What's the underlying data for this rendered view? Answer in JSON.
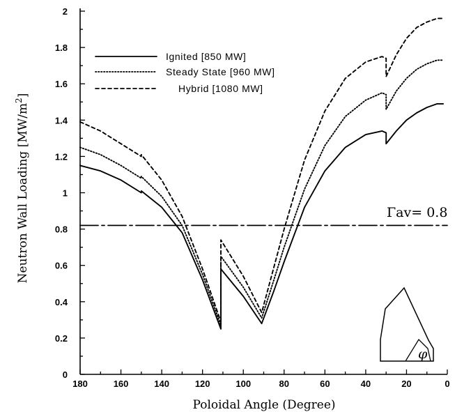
{
  "chart_data": {
    "type": "line",
    "title": "",
    "xlabel": "Poloidal Angle (Degree)",
    "ylabel": "Neutron Wall Loading [MW/m",
    "ylabel_sup": "2",
    "ylabel_end": "]",
    "xlim": [
      180,
      0
    ],
    "ylim": [
      0,
      2
    ],
    "x_ticks": [
      "180",
      "160",
      "140",
      "120",
      "100",
      "80",
      "60",
      "40",
      "20",
      "0"
    ],
    "y_ticks": [
      "0",
      "0.2",
      "0.4",
      "0.6",
      "0.8",
      "1",
      "1.2",
      "1.4",
      "1.6",
      "1.8",
      "2"
    ],
    "grid": false,
    "legend_position": "top-left",
    "series": [
      {
        "name": "Ignited [850 MW]",
        "style": "solid",
        "x": [
          180,
          170,
          160,
          150,
          150,
          140,
          130,
          120,
          111,
          111,
          100,
          91,
          85,
          80,
          75,
          70,
          60,
          50,
          40,
          32,
          30,
          30,
          25,
          20,
          15,
          10,
          5,
          2
        ],
        "y": [
          1.15,
          1.12,
          1.07,
          1.0,
          1.01,
          0.92,
          0.78,
          0.52,
          0.25,
          0.58,
          0.43,
          0.28,
          0.46,
          0.62,
          0.77,
          0.92,
          1.12,
          1.25,
          1.32,
          1.34,
          1.33,
          1.27,
          1.34,
          1.4,
          1.44,
          1.47,
          1.49,
          1.49
        ]
      },
      {
        "name": "Steady State [960 MW]",
        "style": "dotted",
        "x": [
          180,
          170,
          160,
          150,
          150,
          140,
          130,
          120,
          111,
          111,
          100,
          91,
          85,
          80,
          75,
          70,
          60,
          50,
          40,
          32,
          30,
          30,
          25,
          20,
          15,
          10,
          5,
          2
        ],
        "y": [
          1.25,
          1.21,
          1.15,
          1.08,
          1.09,
          0.98,
          0.82,
          0.55,
          0.27,
          0.65,
          0.48,
          0.31,
          0.52,
          0.7,
          0.86,
          1.02,
          1.26,
          1.42,
          1.51,
          1.55,
          1.54,
          1.46,
          1.56,
          1.63,
          1.68,
          1.71,
          1.73,
          1.73
        ]
      },
      {
        "name": "Hybrid [1080 MW]",
        "style": "dashed",
        "x": [
          180,
          170,
          160,
          150,
          150,
          140,
          130,
          120,
          111,
          111,
          100,
          91,
          85,
          80,
          75,
          70,
          60,
          50,
          40,
          32,
          30,
          30,
          25,
          20,
          15,
          10,
          5,
          2
        ],
        "y": [
          1.39,
          1.34,
          1.27,
          1.2,
          1.21,
          1.07,
          0.87,
          0.58,
          0.29,
          0.74,
          0.54,
          0.34,
          0.59,
          0.8,
          0.99,
          1.18,
          1.45,
          1.63,
          1.72,
          1.75,
          1.74,
          1.64,
          1.76,
          1.85,
          1.91,
          1.94,
          1.96,
          1.96
        ]
      }
    ],
    "reference_line": {
      "label": "Γav=  0.8",
      "y": 0.82,
      "style": "dash-dot"
    },
    "inset": "poloidal cross-section outline with angle φ"
  },
  "inset_label": "φ"
}
